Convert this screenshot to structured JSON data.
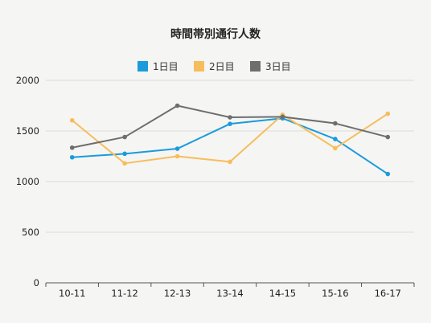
{
  "chart_data": {
    "type": "line",
    "title": "時間帯別通行人数",
    "categories": [
      "10-11",
      "11-12",
      "12-13",
      "13-14",
      "14-15",
      "15-16",
      "16-17"
    ],
    "series": [
      {
        "name": "1日目",
        "color": "#1a9bdc",
        "values": [
          1240,
          1275,
          1325,
          1570,
          1625,
          1420,
          1075
        ]
      },
      {
        "name": "2日目",
        "color": "#f7bd5c",
        "values": [
          1605,
          1180,
          1250,
          1195,
          1660,
          1330,
          1670
        ]
      },
      {
        "name": "3日目",
        "color": "#6e6e6e",
        "values": [
          1335,
          1440,
          1750,
          1635,
          1640,
          1575,
          1440
        ]
      }
    ],
    "ylim": [
      0,
      2000
    ],
    "yticks": [
      0,
      500,
      1000,
      1500,
      2000
    ],
    "xlabel": "",
    "ylabel": "",
    "grid": true,
    "legend_position": "top-center"
  }
}
